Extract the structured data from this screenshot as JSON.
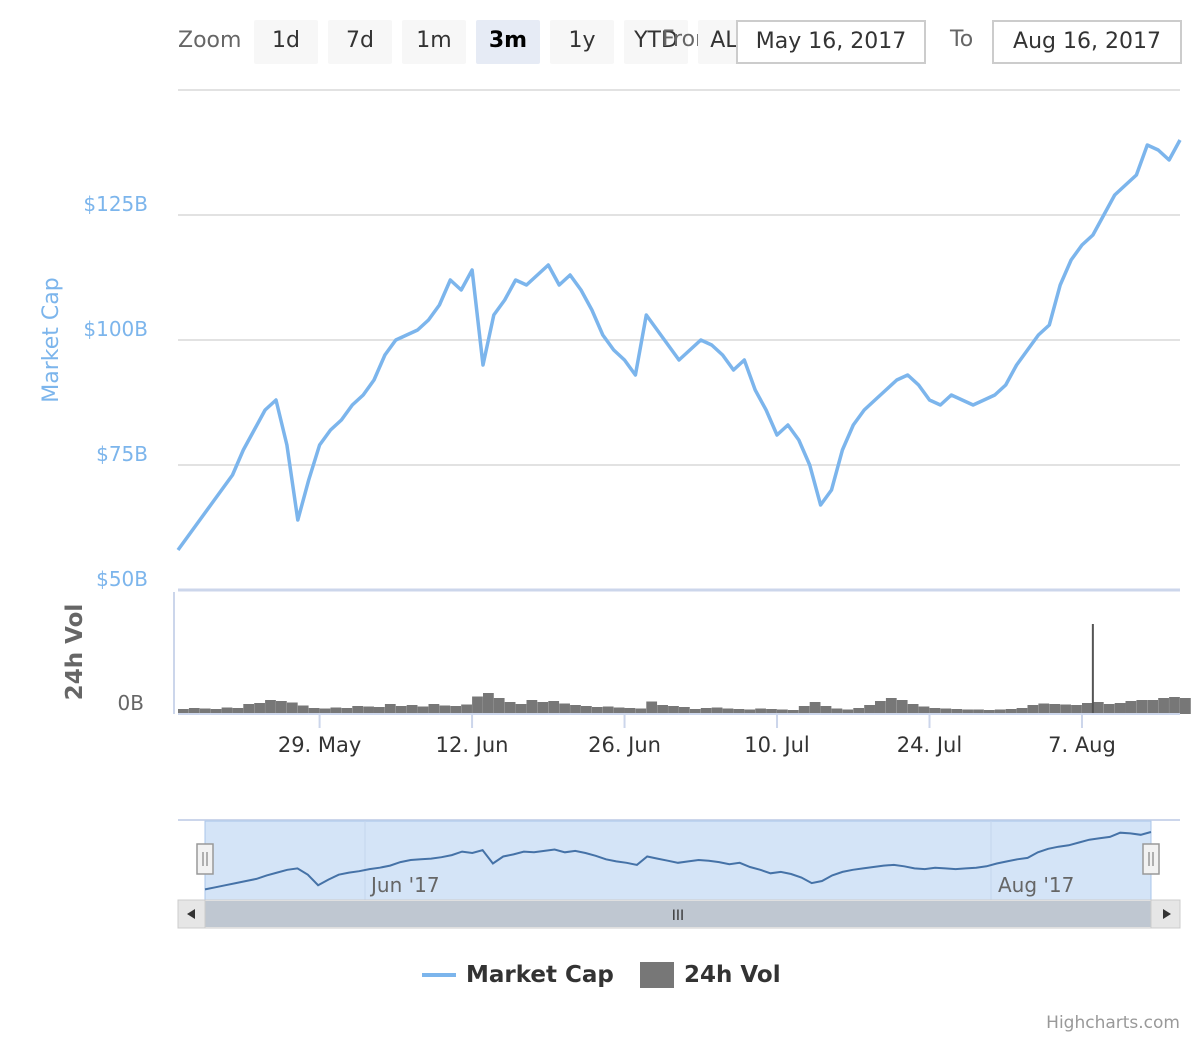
{
  "range_selector": {
    "zoom_label": "Zoom",
    "buttons": [
      "1d",
      "7d",
      "1m",
      "3m",
      "1y",
      "YTD",
      "ALL"
    ],
    "active_button": "3m",
    "from_label": "From",
    "from_value": "May 16, 2017",
    "to_label": "To",
    "to_value": "Aug 16, 2017"
  },
  "legend": [
    {
      "name": "Market Cap",
      "color": "#7cb5ec"
    },
    {
      "name": "24h Vol",
      "color": "#777777"
    }
  ],
  "credits": "Highcharts.com",
  "navigator": {
    "labels": [
      "Jun '17",
      "Aug '17"
    ],
    "scrollbar_grip": "III"
  },
  "chart_data": [
    {
      "type": "line",
      "ylabel": "Market Cap",
      "ytick_labels": [
        "$50B",
        "$75B",
        "$100B",
        "$125B"
      ],
      "yticks": [
        50,
        75,
        100,
        125
      ],
      "ylim": [
        50,
        150
      ],
      "xlim": [
        "2017-05-16",
        "2017-08-16"
      ],
      "xtick_labels": [
        "29. May",
        "12. Jun",
        "26. Jun",
        "10. Jul",
        "24. Jul",
        "7. Aug"
      ],
      "xticks": [
        "2017-05-29",
        "2017-06-12",
        "2017-06-26",
        "2017-07-10",
        "2017-07-24",
        "2017-08-07"
      ],
      "grid": true,
      "series": [
        {
          "name": "Market Cap",
          "color": "#7cb5ec",
          "x": [
            "2017-05-16",
            "2017-05-17",
            "2017-05-18",
            "2017-05-19",
            "2017-05-20",
            "2017-05-21",
            "2017-05-22",
            "2017-05-23",
            "2017-05-24",
            "2017-05-25",
            "2017-05-26",
            "2017-05-27",
            "2017-05-28",
            "2017-05-29",
            "2017-05-30",
            "2017-05-31",
            "2017-06-01",
            "2017-06-02",
            "2017-06-03",
            "2017-06-04",
            "2017-06-05",
            "2017-06-06",
            "2017-06-07",
            "2017-06-08",
            "2017-06-09",
            "2017-06-10",
            "2017-06-11",
            "2017-06-12",
            "2017-06-13",
            "2017-06-14",
            "2017-06-15",
            "2017-06-16",
            "2017-06-17",
            "2017-06-18",
            "2017-06-19",
            "2017-06-20",
            "2017-06-21",
            "2017-06-22",
            "2017-06-23",
            "2017-06-24",
            "2017-06-25",
            "2017-06-26",
            "2017-06-27",
            "2017-06-28",
            "2017-06-29",
            "2017-06-30",
            "2017-07-01",
            "2017-07-02",
            "2017-07-03",
            "2017-07-04",
            "2017-07-05",
            "2017-07-06",
            "2017-07-07",
            "2017-07-08",
            "2017-07-09",
            "2017-07-10",
            "2017-07-11",
            "2017-07-12",
            "2017-07-13",
            "2017-07-14",
            "2017-07-15",
            "2017-07-16",
            "2017-07-17",
            "2017-07-18",
            "2017-07-19",
            "2017-07-20",
            "2017-07-21",
            "2017-07-22",
            "2017-07-23",
            "2017-07-24",
            "2017-07-25",
            "2017-07-26",
            "2017-07-27",
            "2017-07-28",
            "2017-07-29",
            "2017-07-30",
            "2017-07-31",
            "2017-08-01",
            "2017-08-02",
            "2017-08-03",
            "2017-08-04",
            "2017-08-05",
            "2017-08-06",
            "2017-08-07",
            "2017-08-08",
            "2017-08-09",
            "2017-08-10",
            "2017-08-11",
            "2017-08-12",
            "2017-08-13",
            "2017-08-14",
            "2017-08-15",
            "2017-08-16"
          ],
          "values": [
            58,
            61,
            64,
            67,
            70,
            73,
            78,
            82,
            86,
            88,
            79,
            64,
            72,
            79,
            82,
            84,
            87,
            89,
            92,
            97,
            100,
            101,
            102,
            104,
            107,
            112,
            110,
            114,
            95,
            105,
            108,
            112,
            111,
            113,
            115,
            111,
            113,
            110,
            106,
            101,
            98,
            96,
            93,
            105,
            102,
            99,
            96,
            98,
            100,
            99,
            97,
            94,
            96,
            90,
            86,
            81,
            83,
            80,
            75,
            67,
            70,
            78,
            83,
            86,
            88,
            90,
            92,
            93,
            91,
            88,
            87,
            89,
            88,
            87,
            88,
            89,
            91,
            95,
            98,
            101,
            103,
            111,
            116,
            119,
            121,
            125,
            129,
            131,
            133,
            139,
            138,
            136,
            140
          ],
          "ylim": [
            50,
            150
          ]
        }
      ]
    },
    {
      "type": "bar",
      "ylabel": "24h Vol",
      "ytick_labels": [
        "0B"
      ],
      "yticks": [
        0
      ],
      "xlim": [
        "2017-05-16",
        "2017-08-16"
      ],
      "series": [
        {
          "name": "24h Vol",
          "color": "#777777",
          "x": [
            "2017-05-16",
            "2017-05-17",
            "2017-05-18",
            "2017-05-19",
            "2017-05-20",
            "2017-05-21",
            "2017-05-22",
            "2017-05-23",
            "2017-05-24",
            "2017-05-25",
            "2017-05-26",
            "2017-05-27",
            "2017-05-28",
            "2017-05-29",
            "2017-05-30",
            "2017-05-31",
            "2017-06-01",
            "2017-06-02",
            "2017-06-03",
            "2017-06-04",
            "2017-06-05",
            "2017-06-06",
            "2017-06-07",
            "2017-06-08",
            "2017-06-09",
            "2017-06-10",
            "2017-06-11",
            "2017-06-12",
            "2017-06-13",
            "2017-06-14",
            "2017-06-15",
            "2017-06-16",
            "2017-06-17",
            "2017-06-18",
            "2017-06-19",
            "2017-06-20",
            "2017-06-21",
            "2017-06-22",
            "2017-06-23",
            "2017-06-24",
            "2017-06-25",
            "2017-06-26",
            "2017-06-27",
            "2017-06-28",
            "2017-06-29",
            "2017-06-30",
            "2017-07-01",
            "2017-07-02",
            "2017-07-03",
            "2017-07-04",
            "2017-07-05",
            "2017-07-06",
            "2017-07-07",
            "2017-07-08",
            "2017-07-09",
            "2017-07-10",
            "2017-07-11",
            "2017-07-12",
            "2017-07-13",
            "2017-07-14",
            "2017-07-15",
            "2017-07-16",
            "2017-07-17",
            "2017-07-18",
            "2017-07-19",
            "2017-07-20",
            "2017-07-21",
            "2017-07-22",
            "2017-07-23",
            "2017-07-24",
            "2017-07-25",
            "2017-07-26",
            "2017-07-27",
            "2017-07-28",
            "2017-07-29",
            "2017-07-30",
            "2017-07-31",
            "2017-08-01",
            "2017-08-02",
            "2017-08-03",
            "2017-08-04",
            "2017-08-05",
            "2017-08-06",
            "2017-08-07",
            "2017-08-08",
            "2017-08-09",
            "2017-08-10",
            "2017-08-11",
            "2017-08-12",
            "2017-08-13",
            "2017-08-14",
            "2017-08-15",
            "2017-08-16"
          ],
          "values": [
            1.0,
            1.2,
            1.1,
            1.0,
            1.3,
            1.2,
            2.0,
            2.2,
            2.8,
            2.6,
            2.3,
            1.7,
            1.2,
            1.1,
            1.3,
            1.2,
            1.6,
            1.5,
            1.4,
            2.0,
            1.6,
            1.8,
            1.5,
            2.0,
            1.7,
            1.6,
            1.9,
            3.5,
            4.2,
            3.2,
            2.4,
            2.0,
            2.8,
            2.4,
            2.6,
            2.1,
            1.8,
            1.6,
            1.4,
            1.5,
            1.3,
            1.2,
            1.1,
            2.5,
            1.8,
            1.6,
            1.4,
            1.0,
            1.2,
            1.3,
            1.1,
            1.0,
            0.9,
            1.1,
            1.0,
            0.9,
            0.8,
            1.6,
            2.4,
            1.6,
            1.1,
            0.9,
            1.2,
            1.8,
            2.6,
            3.2,
            2.8,
            2.0,
            1.5,
            1.2,
            1.1,
            1.0,
            0.9,
            0.9,
            0.8,
            0.9,
            1.0,
            1.2,
            1.8,
            2.1,
            2.0,
            1.9,
            1.8,
            2.2,
            2.4,
            2.0,
            2.2,
            2.6,
            2.8,
            2.8,
            3.2,
            3.4,
            3.2
          ],
          "spikes": [
            {
              "x": "2017-08-08",
              "value": 18
            }
          ]
        }
      ]
    }
  ]
}
